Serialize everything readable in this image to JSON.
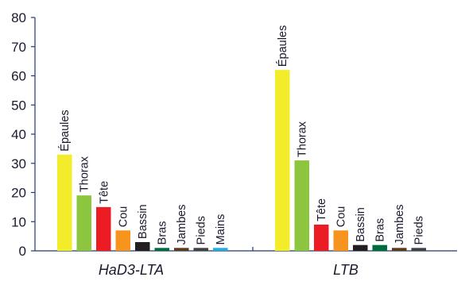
{
  "chart_data": {
    "type": "bar",
    "title": "",
    "xlabel": "",
    "ylabel": "",
    "ylim": [
      0,
      80
    ],
    "yticks": [
      0,
      10,
      20,
      30,
      40,
      50,
      60,
      70,
      80
    ],
    "grid": false,
    "legend": "none",
    "groups": [
      {
        "name": "HaD3-LTA",
        "bars": [
          {
            "label": "Épaules",
            "value": 33,
            "color": "#f3ec2a"
          },
          {
            "label": "Thorax",
            "value": 19,
            "color": "#8cc63f"
          },
          {
            "label": "Tête",
            "value": 15,
            "color": "#ec1c24"
          },
          {
            "label": "Cou",
            "value": 7,
            "color": "#f7941d"
          },
          {
            "label": "Bassin",
            "value": 3,
            "color": "#231f20"
          },
          {
            "label": "Bras",
            "value": 1,
            "color": "#006b3c"
          },
          {
            "label": "Jambes",
            "value": 1,
            "color": "#5a3a1a"
          },
          {
            "label": "Pieds",
            "value": 1,
            "color": "#414042"
          },
          {
            "label": "Mains",
            "value": 1,
            "color": "#27aae1"
          }
        ]
      },
      {
        "name": "LTB",
        "bars": [
          {
            "label": "Épaules",
            "value": 62,
            "color": "#f3ec2a"
          },
          {
            "label": "Thorax",
            "value": 31,
            "color": "#8cc63f"
          },
          {
            "label": "Tête",
            "value": 9,
            "color": "#ec1c24"
          },
          {
            "label": "Cou",
            "value": 7,
            "color": "#f7941d"
          },
          {
            "label": "Bassin",
            "value": 2,
            "color": "#231f20"
          },
          {
            "label": "Bras",
            "value": 2,
            "color": "#006b3c"
          },
          {
            "label": "Jambes",
            "value": 1,
            "color": "#5a3a1a"
          },
          {
            "label": "Pieds",
            "value": 1,
            "color": "#414042"
          }
        ]
      }
    ]
  }
}
